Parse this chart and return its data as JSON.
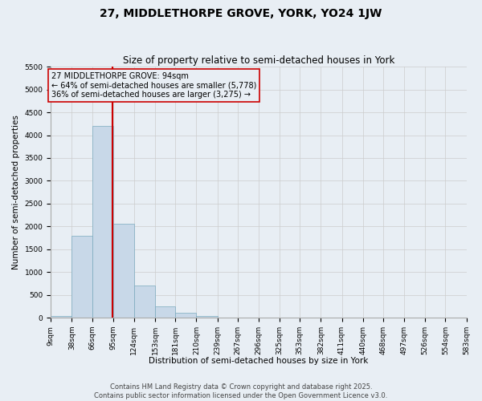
{
  "title": "27, MIDDLETHORPE GROVE, YORK, YO24 1JW",
  "subtitle": "Size of property relative to semi-detached houses in York",
  "xlabel": "Distribution of semi-detached houses by size in York",
  "ylabel": "Number of semi-detached properties",
  "bin_edges": [
    9,
    38,
    66,
    95,
    124,
    153,
    181,
    210,
    239,
    267,
    296,
    325,
    353,
    382,
    411,
    440,
    468,
    497,
    526,
    554,
    583
  ],
  "bar_heights": [
    30,
    1800,
    4200,
    2050,
    700,
    250,
    100,
    30,
    10,
    5,
    3,
    2,
    1,
    1,
    0,
    0,
    0,
    0,
    0,
    0
  ],
  "bar_color": "#c8d8e8",
  "bar_edge_color": "#7aaabe",
  "grid_color": "#cccccc",
  "background_color": "#e8eef4",
  "vline_x": 94,
  "vline_color": "#cc0000",
  "annotation_box_color": "#cc0000",
  "annotation_text_line1": "27 MIDDLETHORPE GROVE: 94sqm",
  "annotation_text_line2": "← 64% of semi-detached houses are smaller (5,778)",
  "annotation_text_line3": "36% of semi-detached houses are larger (3,275) →",
  "ylim": [
    0,
    5500
  ],
  "yticks": [
    0,
    500,
    1000,
    1500,
    2000,
    2500,
    3000,
    3500,
    4000,
    4500,
    5000,
    5500
  ],
  "tick_labels": [
    "9sqm",
    "38sqm",
    "66sqm",
    "95sqm",
    "124sqm",
    "153sqm",
    "181sqm",
    "210sqm",
    "239sqm",
    "267sqm",
    "296sqm",
    "325sqm",
    "353sqm",
    "382sqm",
    "411sqm",
    "440sqm",
    "468sqm",
    "497sqm",
    "526sqm",
    "554sqm",
    "583sqm"
  ],
  "footer_line1": "Contains HM Land Registry data © Crown copyright and database right 2025.",
  "footer_line2": "Contains public sector information licensed under the Open Government Licence v3.0.",
  "title_fontsize": 10,
  "subtitle_fontsize": 8.5,
  "axis_label_fontsize": 7.5,
  "tick_fontsize": 6.5,
  "annotation_fontsize": 7,
  "footer_fontsize": 6
}
